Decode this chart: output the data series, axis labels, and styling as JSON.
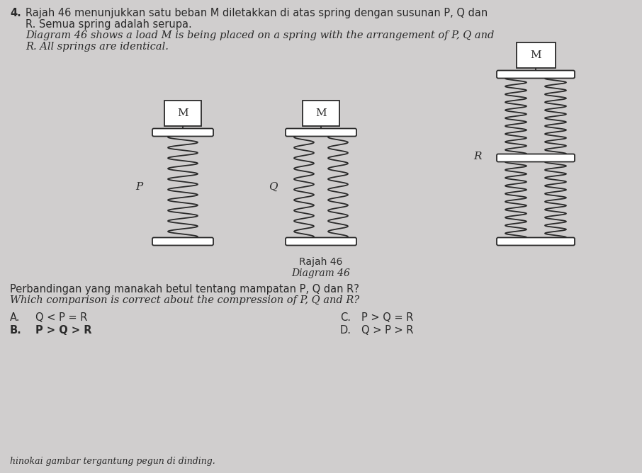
{
  "bg_color": "#d0cece",
  "line_color": "#2a2a2a",
  "title_num": "4.",
  "header_line1": "Rajah 46 menunjukkan satu beban M diletakkan di atas spring dengan susunan P, Q dan",
  "header_line2": "R. Semua spring adalah serupa.",
  "header_line3": "Diagram 46 shows a load M is being placed on a spring with the arrangement of P, Q and",
  "header_line4": "R. All springs are identical.",
  "diagram_label1": "Rajah 46",
  "diagram_label2": "Diagram 46",
  "question_line1": "Perbandingan yang manakah betul tentang mampatan P, Q dan R?",
  "question_line2": "Which comparison is correct about the compression of P, Q and R?",
  "option_A_label": "A.",
  "option_A_text": "Q < P = R",
  "option_B_label": "B.",
  "option_B_text": "P > Q > R",
  "option_C_label": "C.",
  "option_C_text": "P > Q = R",
  "option_D_label": "D.",
  "option_D_text": "Q > P > R",
  "footer": "hinokai gambar tergantung pegun di dinding.",
  "label_P": "P",
  "label_Q": "Q",
  "label_R": "R",
  "label_M": "M"
}
